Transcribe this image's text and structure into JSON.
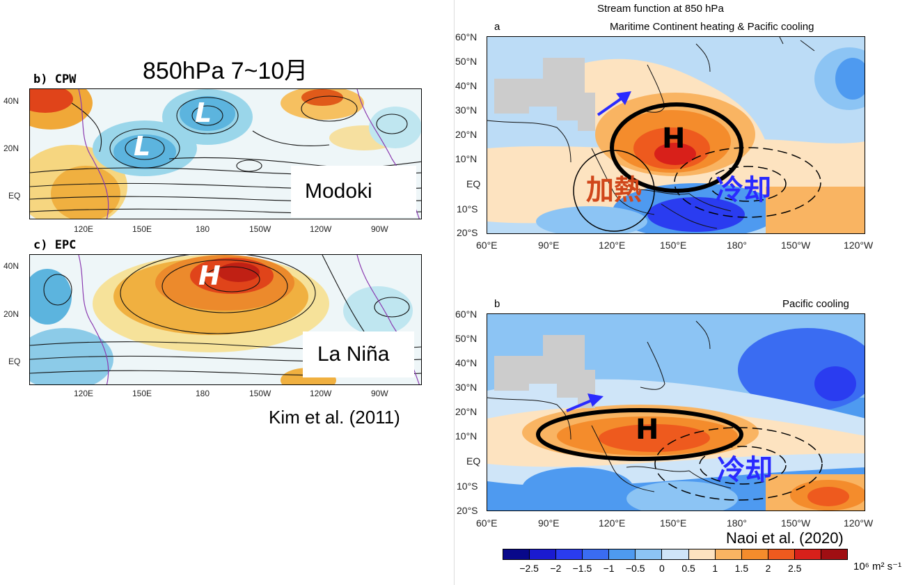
{
  "left": {
    "header": "850hPa 7~10月",
    "top_panel": {
      "tag": "b) CPW",
      "lat_ticks": [
        "40N",
        "20N",
        "EQ"
      ],
      "lon_ticks": [
        "120E",
        "150E",
        "180",
        "150W",
        "120W",
        "90W"
      ],
      "label": "Modoki",
      "markers": [
        "L",
        "L"
      ]
    },
    "bottom_panel": {
      "tag": "c) EPC",
      "lat_ticks": [
        "40N",
        "20N",
        "EQ"
      ],
      "lon_ticks": [
        "120E",
        "150E",
        "180",
        "150W",
        "120W",
        "90W"
      ],
      "label": "La Niña",
      "markers": [
        "H"
      ]
    },
    "citation": "Kim et al. (2011)"
  },
  "right": {
    "title": "Stream function at 850 hPa",
    "panel_a": {
      "letter": "a",
      "subtitle": "Maritime Continent heating & Pacific cooling",
      "lat_ticks": [
        "60°N",
        "50°N",
        "40°N",
        "30°N",
        "20°N",
        "10°N",
        "EQ",
        "10°S",
        "20°S"
      ],
      "lon_ticks": [
        "60°E",
        "90°E",
        "120°E",
        "150°E",
        "180°",
        "150°W",
        "120°W"
      ],
      "high_label": "H",
      "heating_label": "加熱",
      "cooling_label": "冷却"
    },
    "panel_b": {
      "letter": "b",
      "subtitle": "Pacific cooling",
      "lat_ticks": [
        "60°N",
        "50°N",
        "40°N",
        "30°N",
        "20°N",
        "10°N",
        "EQ",
        "10°S",
        "20°S"
      ],
      "lon_ticks": [
        "60°E",
        "90°E",
        "120°E",
        "150°E",
        "180°",
        "150°W",
        "120°W"
      ],
      "high_label": "H",
      "cooling_label": "冷却"
    },
    "citation": "Naoi et al. (2020)",
    "colorbar": {
      "ticks": [
        "−2.5",
        "−2",
        "−1.5",
        "−1",
        "−0.5",
        "0",
        "0.5",
        "1",
        "1.5",
        "2",
        "2.5"
      ],
      "colors": [
        "#08088a",
        "#1a1ad0",
        "#2a3cf0",
        "#3a6cf2",
        "#4e9af0",
        "#8cc4f4",
        "#cfe5f8",
        "#fde3c0",
        "#f9b462",
        "#f48c2c",
        "#ee5a1e",
        "#d8201a",
        "#a00e12"
      ],
      "unit": "10⁶ m² s⁻¹"
    }
  },
  "colors": {
    "blue_arrow": "#2a2aff",
    "heating_text": "#d0461a",
    "cooling_text": "#2a2aff"
  }
}
